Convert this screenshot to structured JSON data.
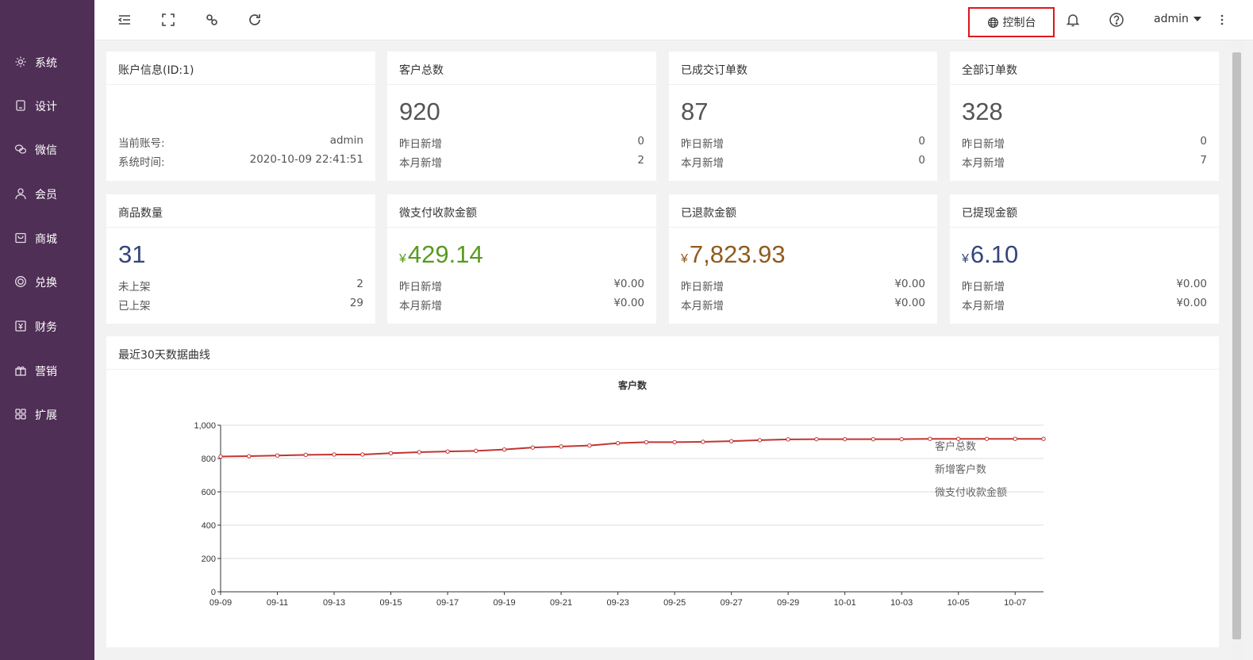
{
  "sidebar": {
    "items": [
      {
        "label": "系统",
        "icon": "gear-icon"
      },
      {
        "label": "设计",
        "icon": "design-icon"
      },
      {
        "label": "微信",
        "icon": "wechat-icon"
      },
      {
        "label": "会员",
        "icon": "user-icon"
      },
      {
        "label": "商城",
        "icon": "shop-icon"
      },
      {
        "label": "兑换",
        "icon": "exchange-icon"
      },
      {
        "label": "财务",
        "icon": "finance-icon"
      },
      {
        "label": "营销",
        "icon": "gift-icon"
      },
      {
        "label": "扩展",
        "icon": "grid-icon"
      }
    ]
  },
  "topbar": {
    "console_label": "控制台",
    "user": "admin"
  },
  "cards": {
    "account": {
      "title": "账户信息(ID:1)",
      "rows": [
        {
          "label": "当前账号:",
          "value": "admin"
        },
        {
          "label": "系统时间:",
          "value": "2020-10-09 22:41:51"
        }
      ]
    },
    "customers": {
      "title": "客户总数",
      "value": "920",
      "rows": [
        {
          "label": "昨日新增",
          "value": "0"
        },
        {
          "label": "本月新增",
          "value": "2"
        }
      ]
    },
    "done_orders": {
      "title": "已成交订单数",
      "value": "87",
      "rows": [
        {
          "label": "昨日新增",
          "value": "0"
        },
        {
          "label": "本月新增",
          "value": "0"
        }
      ]
    },
    "all_orders": {
      "title": "全部订单数",
      "value": "328",
      "rows": [
        {
          "label": "昨日新增",
          "value": "0"
        },
        {
          "label": "本月新增",
          "value": "7"
        }
      ]
    },
    "products": {
      "title": "商品数量",
      "value": "31",
      "rows": [
        {
          "label": "未上架",
          "value": "2"
        },
        {
          "label": "已上架",
          "value": "29"
        }
      ]
    },
    "wxpay": {
      "title": "微支付收款金额",
      "yen": "¥",
      "value": "429.14",
      "rows": [
        {
          "label": "昨日新增",
          "value": "¥0.00"
        },
        {
          "label": "本月新增",
          "value": "¥0.00"
        }
      ]
    },
    "refund": {
      "title": "已退款金额",
      "yen": "¥",
      "value": "7,823.93",
      "rows": [
        {
          "label": "昨日新增",
          "value": "¥0.00"
        },
        {
          "label": "本月新增",
          "value": "¥0.00"
        }
      ]
    },
    "withdraw": {
      "title": "已提现金额",
      "yen": "¥",
      "value": "6.10",
      "rows": [
        {
          "label": "昨日新增",
          "value": "¥0.00"
        },
        {
          "label": "本月新增",
          "value": "¥0.00"
        }
      ]
    }
  },
  "chart_section": {
    "title": "最近30天数据曲线"
  },
  "colors": {
    "sidebar": "#4f2f55",
    "line": "#c23531",
    "console_border": "#e0151c"
  },
  "chart_data": {
    "type": "line",
    "title": "客户数",
    "x": [
      "09-09",
      "09-10",
      "09-11",
      "09-12",
      "09-13",
      "09-14",
      "09-15",
      "09-16",
      "09-17",
      "09-18",
      "09-19",
      "09-20",
      "09-21",
      "09-22",
      "09-23",
      "09-24",
      "09-25",
      "09-26",
      "09-27",
      "09-28",
      "09-29",
      "09-30",
      "10-01",
      "10-02",
      "10-03",
      "10-04",
      "10-05",
      "10-06",
      "10-07",
      "10-08"
    ],
    "xticks": [
      "09-09",
      "09-11",
      "09-13",
      "09-15",
      "09-17",
      "09-19",
      "09-21",
      "09-23",
      "09-25",
      "09-27",
      "09-29",
      "10-01",
      "10-03",
      "10-05",
      "10-07"
    ],
    "yticks": [
      "0",
      "200",
      "400",
      "600",
      "800",
      "1,000"
    ],
    "ylim": [
      0,
      1000
    ],
    "series": [
      {
        "name": "客户总数",
        "values": [
          812,
          814,
          818,
          822,
          824,
          824,
          832,
          838,
          842,
          846,
          854,
          866,
          872,
          878,
          892,
          898,
          898,
          900,
          904,
          910,
          915,
          916,
          916,
          916,
          916,
          918,
          918,
          918,
          918,
          918
        ]
      }
    ],
    "legend": [
      "客户总数",
      "新增客户数",
      "微支付收款金额"
    ],
    "grid": true
  }
}
